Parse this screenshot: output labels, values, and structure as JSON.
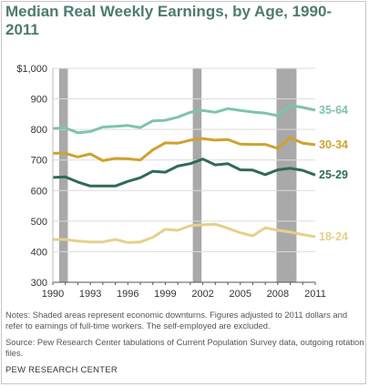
{
  "chart_data": {
    "type": "line",
    "title": "Median Real Weekly Earnings, by Age, 1990-2011",
    "xlim": [
      1990,
      2011
    ],
    "ylim": [
      300,
      1000
    ],
    "x_ticks": [
      "1990",
      "1993",
      "1996",
      "1999",
      "2002",
      "2005",
      "2008",
      "2011"
    ],
    "y_ticks": [
      "$1,000",
      "900",
      "800",
      "700",
      "600",
      "500",
      "400",
      "300"
    ],
    "recessions": [
      [
        1990.5,
        1991.2
      ],
      [
        2001.2,
        2001.9
      ],
      [
        2007.9,
        2009.5
      ]
    ],
    "grid": true,
    "x": [
      1990,
      1991,
      1992,
      1993,
      1994,
      1995,
      1996,
      1997,
      1998,
      1999,
      2000,
      2001,
      2002,
      2003,
      2004,
      2005,
      2006,
      2007,
      2008,
      2009,
      2010,
      2011
    ],
    "series": [
      {
        "name": "35-64",
        "color": "#7fc3ad",
        "values": [
          803,
          805,
          789,
          793,
          808,
          810,
          813,
          806,
          828,
          830,
          840,
          856,
          862,
          856,
          868,
          862,
          857,
          853,
          845,
          879,
          872,
          863
        ]
      },
      {
        "name": "30-34",
        "color": "#cfa22e",
        "values": [
          722,
          722,
          710,
          720,
          698,
          705,
          704,
          700,
          733,
          756,
          755,
          765,
          770,
          765,
          767,
          752,
          751,
          751,
          738,
          773,
          755,
          750
        ]
      },
      {
        "name": "25-29",
        "color": "#2f6b55",
        "values": [
          643,
          645,
          628,
          615,
          615,
          615,
          630,
          642,
          663,
          660,
          680,
          688,
          703,
          684,
          688,
          668,
          667,
          652,
          668,
          673,
          666,
          651
        ]
      },
      {
        "name": "18-24",
        "color": "#e6d08c",
        "values": [
          440,
          440,
          435,
          432,
          432,
          440,
          430,
          432,
          447,
          473,
          470,
          485,
          488,
          490,
          477,
          462,
          452,
          478,
          470,
          464,
          456,
          449
        ]
      }
    ]
  },
  "notes": "Notes: Shaded areas represent economic downturns. Figures adjusted to 2011 dollars and refer to earnings of full-time workers. The self-employed are excluded.",
  "source": "Source: Pew Research Center tabulations of Current Population Survey data, outgoing rotation files.",
  "footer": "PEW RESEARCH CENTER"
}
